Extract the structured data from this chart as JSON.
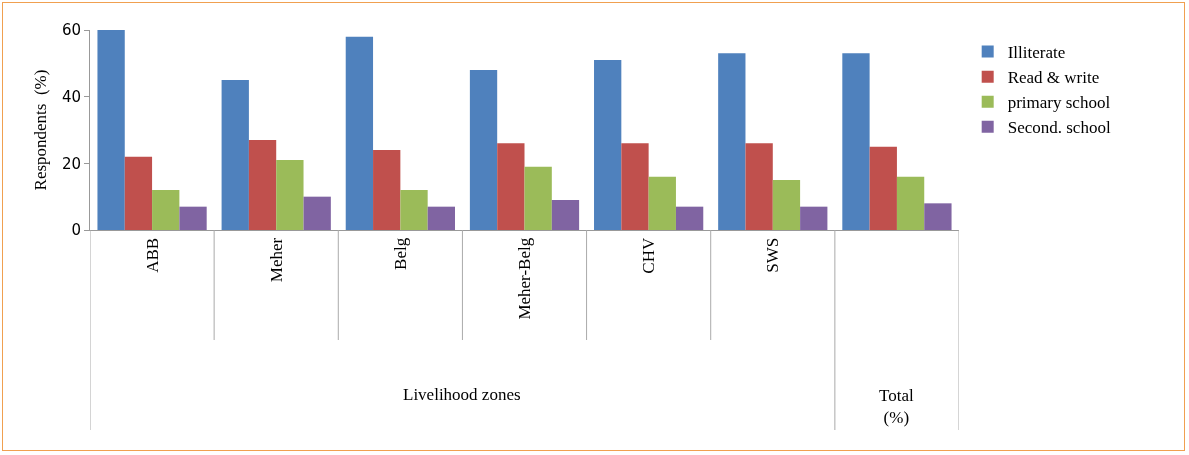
{
  "chart_data": {
    "type": "bar",
    "ylabel": "Respondents  (%)",
    "categories": [
      "ABB",
      "Meher",
      "Belg",
      "Meher-Belg",
      "CHV",
      "SWS",
      null
    ],
    "series": [
      {
        "name": "Illiterate",
        "color": "#4f81bd",
        "values": [
          60,
          45,
          58,
          48,
          51,
          53,
          53
        ]
      },
      {
        "name": "Read & write",
        "color": "#c0504d",
        "values": [
          22,
          27,
          24,
          26,
          26,
          26,
          25
        ]
      },
      {
        "name": "primary school",
        "color": "#9bbb59",
        "values": [
          12,
          21,
          12,
          19,
          16,
          15,
          16
        ]
      },
      {
        "name": "Second. school",
        "color": "#8064a2",
        "values": [
          7,
          10,
          7,
          9,
          7,
          7,
          8
        ]
      }
    ],
    "ylim": [
      0,
      60
    ],
    "yticks": [
      0,
      20,
      40,
      60
    ],
    "grid": false,
    "legend": "right",
    "annotations": [
      "Livelihood zones",
      "Total\n(%)"
    ]
  }
}
